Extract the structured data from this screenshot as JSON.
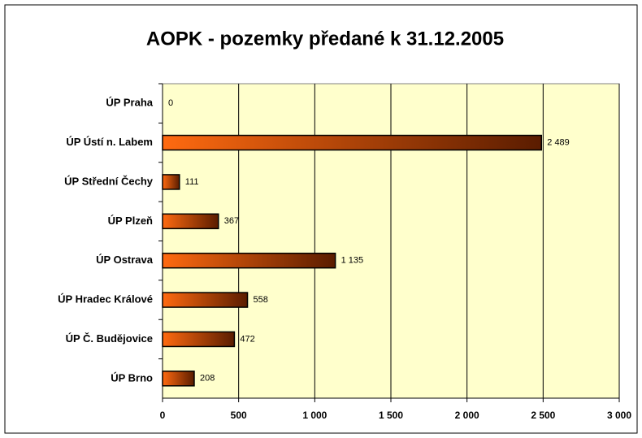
{
  "chart_data": {
    "type": "barh",
    "title": "AOPK - pozemky předané k 31.12.2005",
    "categories": [
      "ÚP Praha",
      "ÚP Ústí n. Labem",
      "ÚP Střední Čechy",
      "ÚP Plzeň",
      "ÚP Ostrava",
      "ÚP Hradec Králové",
      "ÚP Č. Budějovice",
      "ÚP Brno"
    ],
    "values": [
      0,
      2489,
      111,
      367,
      1135,
      558,
      472,
      208
    ],
    "value_labels": [
      "0",
      "2 489",
      "111",
      "367",
      "1 135",
      "558",
      "472",
      "208"
    ],
    "gradient": [
      "#ff6a10",
      "#5a1c00"
    ],
    "plot_background": "#ffffcc",
    "xlim": [
      0,
      3000
    ],
    "xticks": [
      0,
      500,
      {
        "value": 1000,
        "label": "1 000"
      },
      {
        "value": 1500,
        "label": "1 500"
      },
      {
        "value": 2000,
        "label": "2 000"
      },
      {
        "value": 2500,
        "label": "2 500"
      },
      {
        "value": 3000,
        "label": "3 000"
      }
    ],
    "grid": true
  }
}
